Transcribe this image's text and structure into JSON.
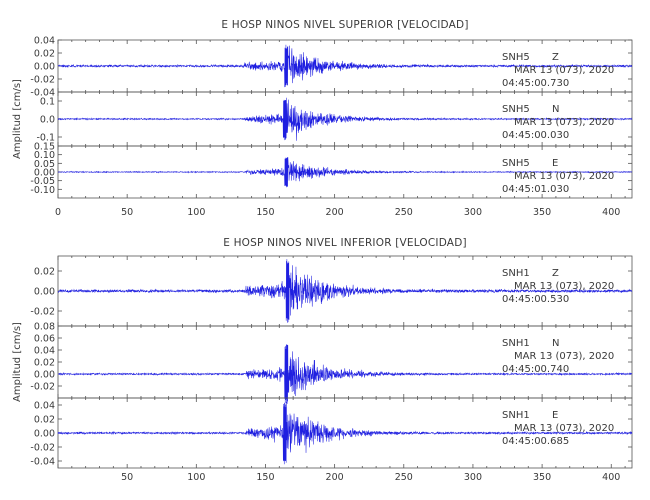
{
  "chart_data": [
    {
      "type": "line",
      "title": "E HOSP NINOS NIVEL SUPERIOR [VELOCIDAD]",
      "ylabel": "Amplitud [cm/s]",
      "xlim": [
        0,
        415
      ],
      "xticks": [
        0,
        50,
        100,
        150,
        200,
        250,
        300,
        350,
        400
      ],
      "x_tick_labels_shown": true,
      "panels": [
        {
          "station": "SNH5",
          "component": "Z",
          "date": "MAR 13 (073), 2020",
          "time": "04:45:00.730",
          "ylim": [
            -0.04,
            0.04
          ],
          "yticks": [
            "0.04",
            "0.02",
            "0.00",
            "-0.02",
            "-0.04"
          ],
          "onset": 135,
          "peak_time": 165,
          "peak_amp": 0.033,
          "noise": 0.0018,
          "color": "#1f1fe0"
        },
        {
          "station": "SNH5",
          "component": "N",
          "date": "MAR 13 (073), 2020",
          "time": "04:45:00.030",
          "ylim": [
            -0.15,
            0.15
          ],
          "yticks": [
            "0.1",
            "0.0",
            "-0.1"
          ],
          "onset": 135,
          "peak_time": 164,
          "peak_amp": 0.12,
          "noise": 0.004,
          "color": "#1f1fe0"
        },
        {
          "station": "SNH5",
          "component": "E",
          "date": "MAR 13 (073), 2020",
          "time": "04:45:01.030",
          "ylim": [
            -0.15,
            0.15
          ],
          "yticks": [
            "0.15",
            "0.10",
            "0.05",
            "0.00",
            "-0.05",
            "-0.10"
          ],
          "onset": 136,
          "peak_time": 165,
          "peak_amp": 0.09,
          "noise": 0.003,
          "color": "#1f1fe0"
        }
      ]
    },
    {
      "type": "line",
      "title": "E HOSP NINOS NIVEL INFERIOR [VELOCIDAD]",
      "ylabel": "Amplitud [cm/s]",
      "xlim": [
        0,
        415
      ],
      "xticks": [
        50,
        100,
        150,
        200,
        250,
        300,
        350,
        400
      ],
      "x_tick_labels_shown": true,
      "panels": [
        {
          "station": "SNH1",
          "component": "Z",
          "date": "MAR 13 (073), 2020",
          "time": "04:45:00.530",
          "ylim": [
            -0.035,
            0.035
          ],
          "yticks": [
            "0.02",
            "0.00",
            "-0.02"
          ],
          "onset": 135,
          "peak_time": 166,
          "peak_amp": 0.032,
          "noise": 0.0015,
          "color": "#1f1fe0"
        },
        {
          "station": "SNH1",
          "component": "N",
          "date": "MAR 13 (073), 2020",
          "time": "04:45:00.740",
          "ylim": [
            -0.04,
            0.08
          ],
          "yticks": [
            "0.08",
            "0.06",
            "0.04",
            "0.02",
            "0.00",
            "-0.02"
          ],
          "onset": 136,
          "peak_time": 165,
          "peak_amp": 0.05,
          "noise": 0.0015,
          "color": "#1f1fe0"
        },
        {
          "station": "SNH1",
          "component": "E",
          "date": "MAR 13 (073), 2020",
          "time": "04:45:00.685",
          "ylim": [
            -0.05,
            0.05
          ],
          "yticks": [
            "0.04",
            "0.02",
            "0.00",
            "-0.02",
            "-0.04"
          ],
          "onset": 136,
          "peak_time": 164,
          "peak_amp": 0.045,
          "noise": 0.0015,
          "color": "#1f1fe0"
        }
      ]
    }
  ]
}
